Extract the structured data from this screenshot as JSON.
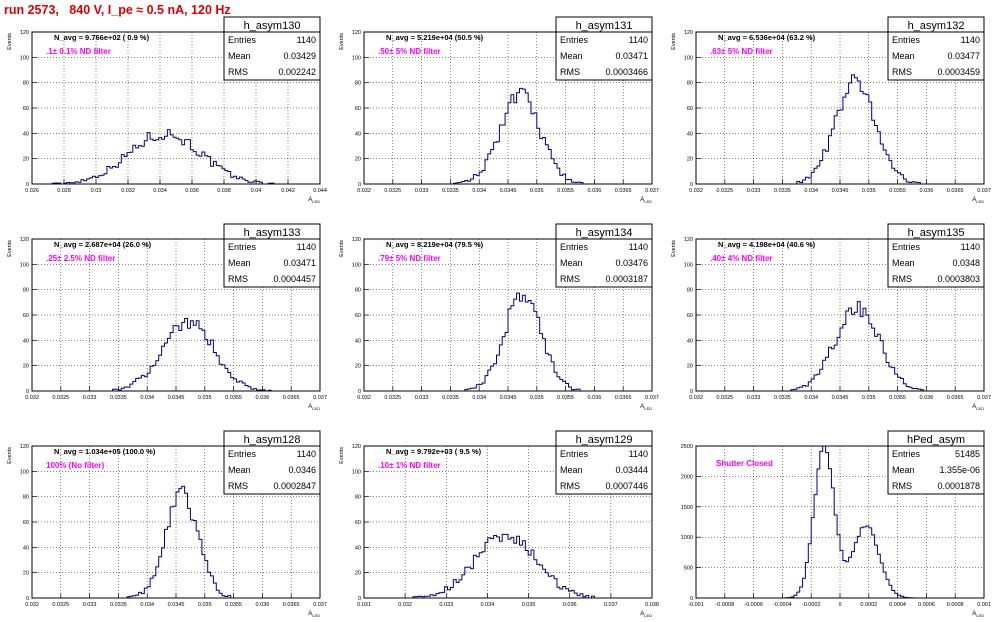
{
  "run_title": "run 2573,   840 V, I_pe ≈ 0.5 nA, 120 Hz",
  "colors": {
    "histogram": "#000080",
    "annotation": "#ff00ff",
    "title": "#dd0000",
    "grid": "#000000"
  },
  "stat_labels": {
    "entries": "Entries",
    "mean": "Mean",
    "rms": "RMS"
  },
  "chart_data": [
    {
      "type": "bar",
      "name": "h_asym130",
      "navg": "N_avg = 9.766e+02 ( 0.9 %)",
      "annotation": ".1± 0.1% ND filter",
      "stats": {
        "entries": "1140",
        "mean": "0.03429",
        "rms": "0.002242"
      },
      "xlabel": "A_{LED}",
      "ylabel": "Events",
      "xlim": [
        0.026,
        0.044
      ],
      "ylim": [
        0,
        120
      ],
      "grid": true,
      "xticks": [
        0.026,
        0.028,
        0.03,
        0.032,
        0.034,
        0.036,
        0.038,
        0.04,
        0.042,
        0.044
      ],
      "xtick_labels": [
        "0.026",
        "0.028",
        "0.03",
        "0.032",
        "0.034",
        "0.036",
        "0.038",
        "0.04",
        "0.042",
        "0.044"
      ],
      "yticks": [
        0,
        20,
        40,
        60,
        80,
        100,
        120
      ],
      "hist": {
        "mean": 0.0343,
        "sigma": 0.00224,
        "peak": 40
      }
    },
    {
      "type": "bar",
      "name": "h_asym131",
      "navg": "N_avg = 5.219e+04 (50.5 %)",
      "annotation": ".50± 5% ND filter",
      "stats": {
        "entries": "1140",
        "mean": "0.03471",
        "rms": "0.0003466"
      },
      "xlabel": "A_{LED}",
      "ylabel": "Events",
      "xlim": [
        0.032,
        0.037
      ],
      "ylim": [
        0,
        120
      ],
      "grid": true,
      "xticks": [
        0.032,
        0.0325,
        0.033,
        0.0335,
        0.034,
        0.0345,
        0.035,
        0.0355,
        0.036,
        0.0365,
        0.037
      ],
      "xtick_labels": [
        "0.032",
        "0.0325",
        "0.033",
        "0.0335",
        "0.034",
        "0.0345",
        "0.035",
        "0.0355",
        "0.036",
        "0.0365",
        "0.037"
      ],
      "yticks": [
        0,
        20,
        40,
        60,
        80,
        100,
        120
      ],
      "hist": {
        "mean": 0.03471,
        "sigma": 0.00035,
        "peak": 70
      }
    },
    {
      "type": "bar",
      "name": "h_asym132",
      "navg": "N_avg = 6.536e+04 (63.2 %)",
      "annotation": ".63± 5% ND filter",
      "stats": {
        "entries": "1140",
        "mean": "0.03477",
        "rms": "0.0003459"
      },
      "xlabel": "A_{LED}",
      "ylabel": "Events",
      "xlim": [
        0.032,
        0.037
      ],
      "ylim": [
        0,
        120
      ],
      "grid": true,
      "xticks": [
        0.032,
        0.0325,
        0.033,
        0.0335,
        0.034,
        0.0345,
        0.035,
        0.0355,
        0.036,
        0.0365,
        0.037
      ],
      "xtick_labels": [
        "0.032",
        "0.0325",
        "0.033",
        "0.0335",
        "0.034",
        "0.0345",
        "0.035",
        "0.0355",
        "0.036",
        "0.0365",
        "0.037"
      ],
      "yticks": [
        0,
        20,
        40,
        60,
        80,
        100,
        120
      ],
      "hist": {
        "mean": 0.03477,
        "sigma": 0.00035,
        "peak": 80
      }
    },
    {
      "type": "bar",
      "name": "h_asym133",
      "navg": "N_avg = 2.687e+04 (26.0 %)",
      "annotation": ".25± 2.5% ND filter",
      "stats": {
        "entries": "1140",
        "mean": "0.03471",
        "rms": "0.0004457"
      },
      "xlabel": "A_{LED}",
      "ylabel": "Events",
      "xlim": [
        0.032,
        0.037
      ],
      "ylim": [
        0,
        120
      ],
      "grid": true,
      "xticks": [
        0.032,
        0.0325,
        0.033,
        0.0335,
        0.034,
        0.0345,
        0.035,
        0.0355,
        0.036,
        0.0365,
        0.037
      ],
      "xtick_labels": [
        "0.032",
        "0.0325",
        "0.033",
        "0.0335",
        "0.034",
        "0.0345",
        "0.035",
        "0.0355",
        "0.036",
        "0.0365",
        "0.037"
      ],
      "yticks": [
        0,
        20,
        40,
        60,
        80,
        100,
        120
      ],
      "hist": {
        "mean": 0.03471,
        "sigma": 0.000446,
        "peak": 55
      }
    },
    {
      "type": "bar",
      "name": "h_asym134",
      "navg": "N_avg = 8.219e+04 (79.5 %)",
      "annotation": ".79± 5% ND filter",
      "stats": {
        "entries": "1140",
        "mean": "0.03476",
        "rms": "0.0003187"
      },
      "xlabel": "A_{LED}",
      "ylabel": "Events",
      "xlim": [
        0.032,
        0.037
      ],
      "ylim": [
        0,
        120
      ],
      "grid": true,
      "xticks": [
        0.032,
        0.0325,
        0.033,
        0.0335,
        0.034,
        0.0345,
        0.035,
        0.0355,
        0.036,
        0.0365,
        0.037
      ],
      "xtick_labels": [
        "0.032",
        "0.0325",
        "0.033",
        "0.0335",
        "0.034",
        "0.0345",
        "0.035",
        "0.0355",
        "0.036",
        "0.0365",
        "0.037"
      ],
      "yticks": [
        0,
        20,
        40,
        60,
        80,
        100,
        120
      ],
      "hist": {
        "mean": 0.03476,
        "sigma": 0.00032,
        "peak": 77
      }
    },
    {
      "type": "bar",
      "name": "h_asym135",
      "navg": "N_avg = 4.198e+04 (40.6 %)",
      "annotation": ".40± 4% ND filter",
      "stats": {
        "entries": "1140",
        "mean": "0.0348",
        "rms": "0.0003803"
      },
      "xlabel": "A_{LED}",
      "ylabel": "Events",
      "xlim": [
        0.032,
        0.037
      ],
      "ylim": [
        0,
        120
      ],
      "grid": true,
      "xticks": [
        0.032,
        0.0325,
        0.033,
        0.0335,
        0.034,
        0.0345,
        0.035,
        0.0355,
        0.036,
        0.0365,
        0.037
      ],
      "xtick_labels": [
        "0.032",
        "0.0325",
        "0.033",
        "0.0335",
        "0.034",
        "0.0345",
        "0.035",
        "0.0355",
        "0.036",
        "0.0365",
        "0.037"
      ],
      "yticks": [
        0,
        20,
        40,
        60,
        80,
        100,
        120
      ],
      "hist": {
        "mean": 0.0348,
        "sigma": 0.00038,
        "peak": 66
      }
    },
    {
      "type": "bar",
      "name": "h_asym128",
      "navg": "N_avg = 1.034e+05 (100.0 %)",
      "annotation": "100% (No filter)",
      "stats": {
        "entries": "1140",
        "mean": "0.0346",
        "rms": "0.0002847"
      },
      "xlabel": "A_{LED}",
      "ylabel": "Events",
      "xlim": [
        0.032,
        0.037
      ],
      "ylim": [
        0,
        120
      ],
      "grid": true,
      "xticks": [
        0.032,
        0.0325,
        0.033,
        0.0335,
        0.034,
        0.0345,
        0.035,
        0.0355,
        0.036,
        0.0365,
        0.037
      ],
      "xtick_labels": [
        "0.032",
        "0.0325",
        "0.033",
        "0.0335",
        "0.034",
        "0.0345",
        "0.035",
        "0.0355",
        "0.036",
        "0.0365",
        "0.037"
      ],
      "yticks": [
        0,
        20,
        40,
        60,
        80,
        100,
        120
      ],
      "hist": {
        "mean": 0.0346,
        "sigma": 0.000285,
        "peak": 82
      }
    },
    {
      "type": "bar",
      "name": "h_asym129",
      "navg": "N_avg = 9.792e+03 ( 9.5 %)",
      "annotation": ".10± 1% ND filter",
      "stats": {
        "entries": "1140",
        "mean": "0.03444",
        "rms": "0.0007446"
      },
      "xlabel": "A_{LED}",
      "ylabel": "Events",
      "xlim": [
        0.031,
        0.038
      ],
      "ylim": [
        0,
        120
      ],
      "grid": true,
      "xticks": [
        0.031,
        0.032,
        0.033,
        0.034,
        0.035,
        0.036,
        0.037,
        0.038
      ],
      "xtick_labels": [
        "0.031",
        "0.032",
        "0.033",
        "0.034",
        "0.035",
        "0.036",
        "0.037",
        "0.038"
      ],
      "yticks": [
        0,
        20,
        40,
        60,
        80,
        100,
        120
      ],
      "hist": {
        "mean": 0.03444,
        "sigma": 0.00074,
        "peak": 50
      }
    },
    {
      "type": "bar",
      "name": "hPed_asym",
      "navg": "",
      "annotation": "Shutter Closed",
      "stats": {
        "entries": "51485",
        "mean": "1.355e-06",
        "rms": "0.0001878"
      },
      "xlabel": "A_{LED}",
      "ylabel": "",
      "xlim": [
        -0.001,
        0.001
      ],
      "ylim": [
        0,
        2500
      ],
      "grid": true,
      "xticks": [
        -0.001,
        -0.0008,
        -0.0006,
        -0.0004,
        -0.0002,
        0,
        0.0002,
        0.0004,
        0.0006,
        0.0008,
        0.001
      ],
      "xtick_labels": [
        "-0.001",
        "-0.0008",
        "-0.0006",
        "-0.0004",
        "-0.0002",
        "0",
        "0.0002",
        "0.0004",
        "0.0006",
        "0.0008",
        "0.001"
      ],
      "yticks": [
        0,
        500,
        1000,
        1500,
        2000,
        2500
      ],
      "hist": {
        "peaks": [
          {
            "mean": -0.00011,
            "sigma": 7e-05,
            "peak": 2500
          },
          {
            "mean": 0.00018,
            "sigma": 9e-05,
            "peak": 1200
          }
        ]
      }
    }
  ]
}
